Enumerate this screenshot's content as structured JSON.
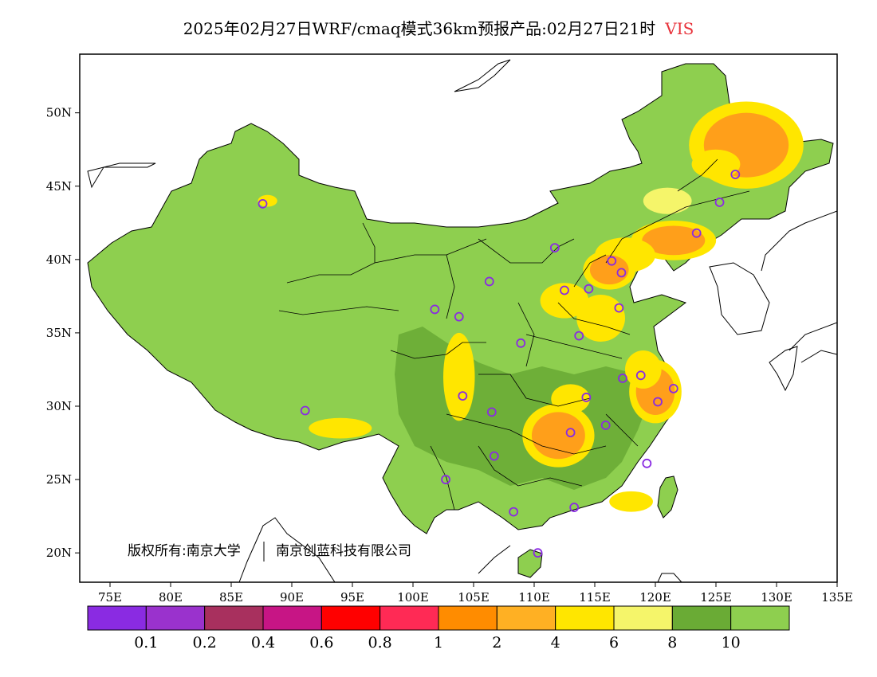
{
  "title": {
    "main": "2025年02月27日WRF/cmaq模式36km预报产品:02月27日21时",
    "variable": "VIS",
    "variable_color": "#e8343c"
  },
  "copyright": {
    "text": "版权所有:南京大学",
    "org": "南京创蓝科技有限公司"
  },
  "chart_data": {
    "type": "heatmap",
    "x_ticks": [
      "75E",
      "80E",
      "85E",
      "90E",
      "95E",
      "100E",
      "105E",
      "110E",
      "115E",
      "120E",
      "125E",
      "130E",
      "135E"
    ],
    "y_ticks": [
      "20N",
      "25N",
      "30N",
      "35N",
      "40N",
      "45N",
      "50N"
    ],
    "xlim": [
      72.5,
      135
    ],
    "ylim": [
      18,
      54
    ],
    "colorbar": {
      "labels": [
        "0.1",
        "0.2",
        "0.4",
        "0.6",
        "0.8",
        "1",
        "2",
        "4",
        "6",
        "8",
        "10"
      ],
      "colors": [
        "#8a2be2",
        "#9a32cd",
        "#a8305e",
        "#c71585",
        "#ff0000",
        "#ff2a55",
        "#ff8c00",
        "#ffb023",
        "#ffe600",
        "#f5f56a",
        "#6aab35",
        "#8ecf4f"
      ]
    },
    "stations": [
      {
        "lon": 87.6,
        "lat": 43.8
      },
      {
        "lon": 91.1,
        "lat": 29.7
      },
      {
        "lon": 101.8,
        "lat": 36.6
      },
      {
        "lon": 103.8,
        "lat": 36.1
      },
      {
        "lon": 106.3,
        "lat": 38.5
      },
      {
        "lon": 111.7,
        "lat": 40.8
      },
      {
        "lon": 112.5,
        "lat": 37.9
      },
      {
        "lon": 114.5,
        "lat": 38.0
      },
      {
        "lon": 116.4,
        "lat": 39.9
      },
      {
        "lon": 117.2,
        "lat": 39.1
      },
      {
        "lon": 117.0,
        "lat": 36.7
      },
      {
        "lon": 113.7,
        "lat": 34.8
      },
      {
        "lon": 108.9,
        "lat": 34.3
      },
      {
        "lon": 104.1,
        "lat": 30.7
      },
      {
        "lon": 106.5,
        "lat": 29.6
      },
      {
        "lon": 106.7,
        "lat": 26.6
      },
      {
        "lon": 102.7,
        "lat": 25.0
      },
      {
        "lon": 108.3,
        "lat": 22.8
      },
      {
        "lon": 113.3,
        "lat": 23.1
      },
      {
        "lon": 110.3,
        "lat": 20.0
      },
      {
        "lon": 113.0,
        "lat": 28.2
      },
      {
        "lon": 114.3,
        "lat": 30.6
      },
      {
        "lon": 115.9,
        "lat": 28.7
      },
      {
        "lon": 117.3,
        "lat": 31.9
      },
      {
        "lon": 118.8,
        "lat": 32.1
      },
      {
        "lon": 120.2,
        "lat": 30.3
      },
      {
        "lon": 121.5,
        "lat": 31.2
      },
      {
        "lon": 119.3,
        "lat": 26.1
      },
      {
        "lon": 123.4,
        "lat": 41.8
      },
      {
        "lon": 125.3,
        "lat": 43.9
      },
      {
        "lon": 126.6,
        "lat": 45.8
      }
    ],
    "blobs": [
      {
        "lon": 127.5,
        "lat": 47.8,
        "rx": 3.5,
        "ry": 2.2,
        "level": "2-4"
      },
      {
        "lon": 125.0,
        "lat": 46.5,
        "rx": 2.0,
        "ry": 1.0,
        "level": "4-6"
      },
      {
        "lon": 121.5,
        "lat": 41.3,
        "rx": 2.6,
        "ry": 1.0,
        "level": "2-4"
      },
      {
        "lon": 117.5,
        "lat": 40.3,
        "rx": 2.5,
        "ry": 1.2,
        "level": "4-6"
      },
      {
        "lon": 116.2,
        "lat": 39.3,
        "rx": 1.6,
        "ry": 1.0,
        "level": "2-4"
      },
      {
        "lon": 112.5,
        "lat": 37.2,
        "rx": 2.0,
        "ry": 1.2,
        "level": "4-6"
      },
      {
        "lon": 115.5,
        "lat": 36.0,
        "rx": 2.0,
        "ry": 1.6,
        "level": "4-6"
      },
      {
        "lon": 112.0,
        "lat": 28.0,
        "rx": 2.2,
        "ry": 1.6,
        "level": "2-4"
      },
      {
        "lon": 113.0,
        "lat": 30.5,
        "rx": 1.6,
        "ry": 1.0,
        "level": "4-6"
      },
      {
        "lon": 103.8,
        "lat": 32.0,
        "rx": 1.3,
        "ry": 3.0,
        "level": "4-6"
      },
      {
        "lon": 120.0,
        "lat": 31.0,
        "rx": 1.6,
        "ry": 1.6,
        "level": "2-4"
      },
      {
        "lon": 119.0,
        "lat": 32.5,
        "rx": 1.5,
        "ry": 1.3,
        "level": "4-6"
      },
      {
        "lon": 118.0,
        "lat": 23.5,
        "rx": 1.8,
        "ry": 0.7,
        "level": "4-6"
      },
      {
        "lon": 94.0,
        "lat": 28.5,
        "rx": 2.6,
        "ry": 0.7,
        "level": "4-6"
      },
      {
        "lon": 88.0,
        "lat": 44.0,
        "rx": 0.8,
        "ry": 0.4,
        "level": "4-6"
      },
      {
        "lon": 121.0,
        "lat": 44.0,
        "rx": 2.0,
        "ry": 0.9,
        "level": "6-8"
      }
    ]
  }
}
